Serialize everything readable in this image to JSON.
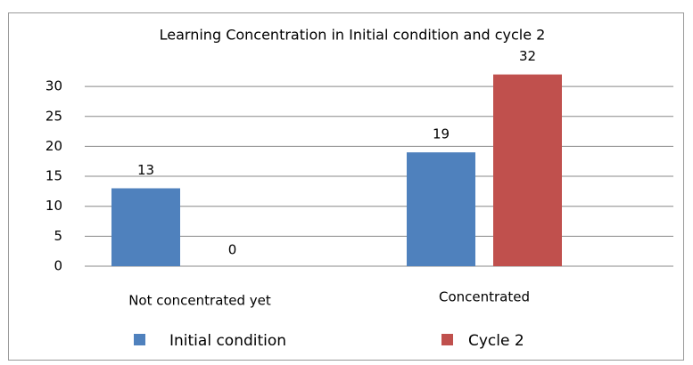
{
  "chart_data": {
    "type": "bar",
    "title": "Learning Concentration  in Initial condition and cycle 2",
    "categories": [
      "Not concentrated yet",
      "Concentrated"
    ],
    "series": [
      {
        "name": "Initial condition",
        "color": "#4f81bd",
        "values": [
          13,
          19
        ]
      },
      {
        "name": "Cycle 2",
        "color": "#c0504d",
        "values": [
          0,
          32
        ]
      }
    ],
    "ylim": [
      0,
      33
    ],
    "yticks": [
      0,
      5,
      10,
      15,
      20,
      25,
      30
    ],
    "grid": true,
    "legend": "bottom"
  }
}
